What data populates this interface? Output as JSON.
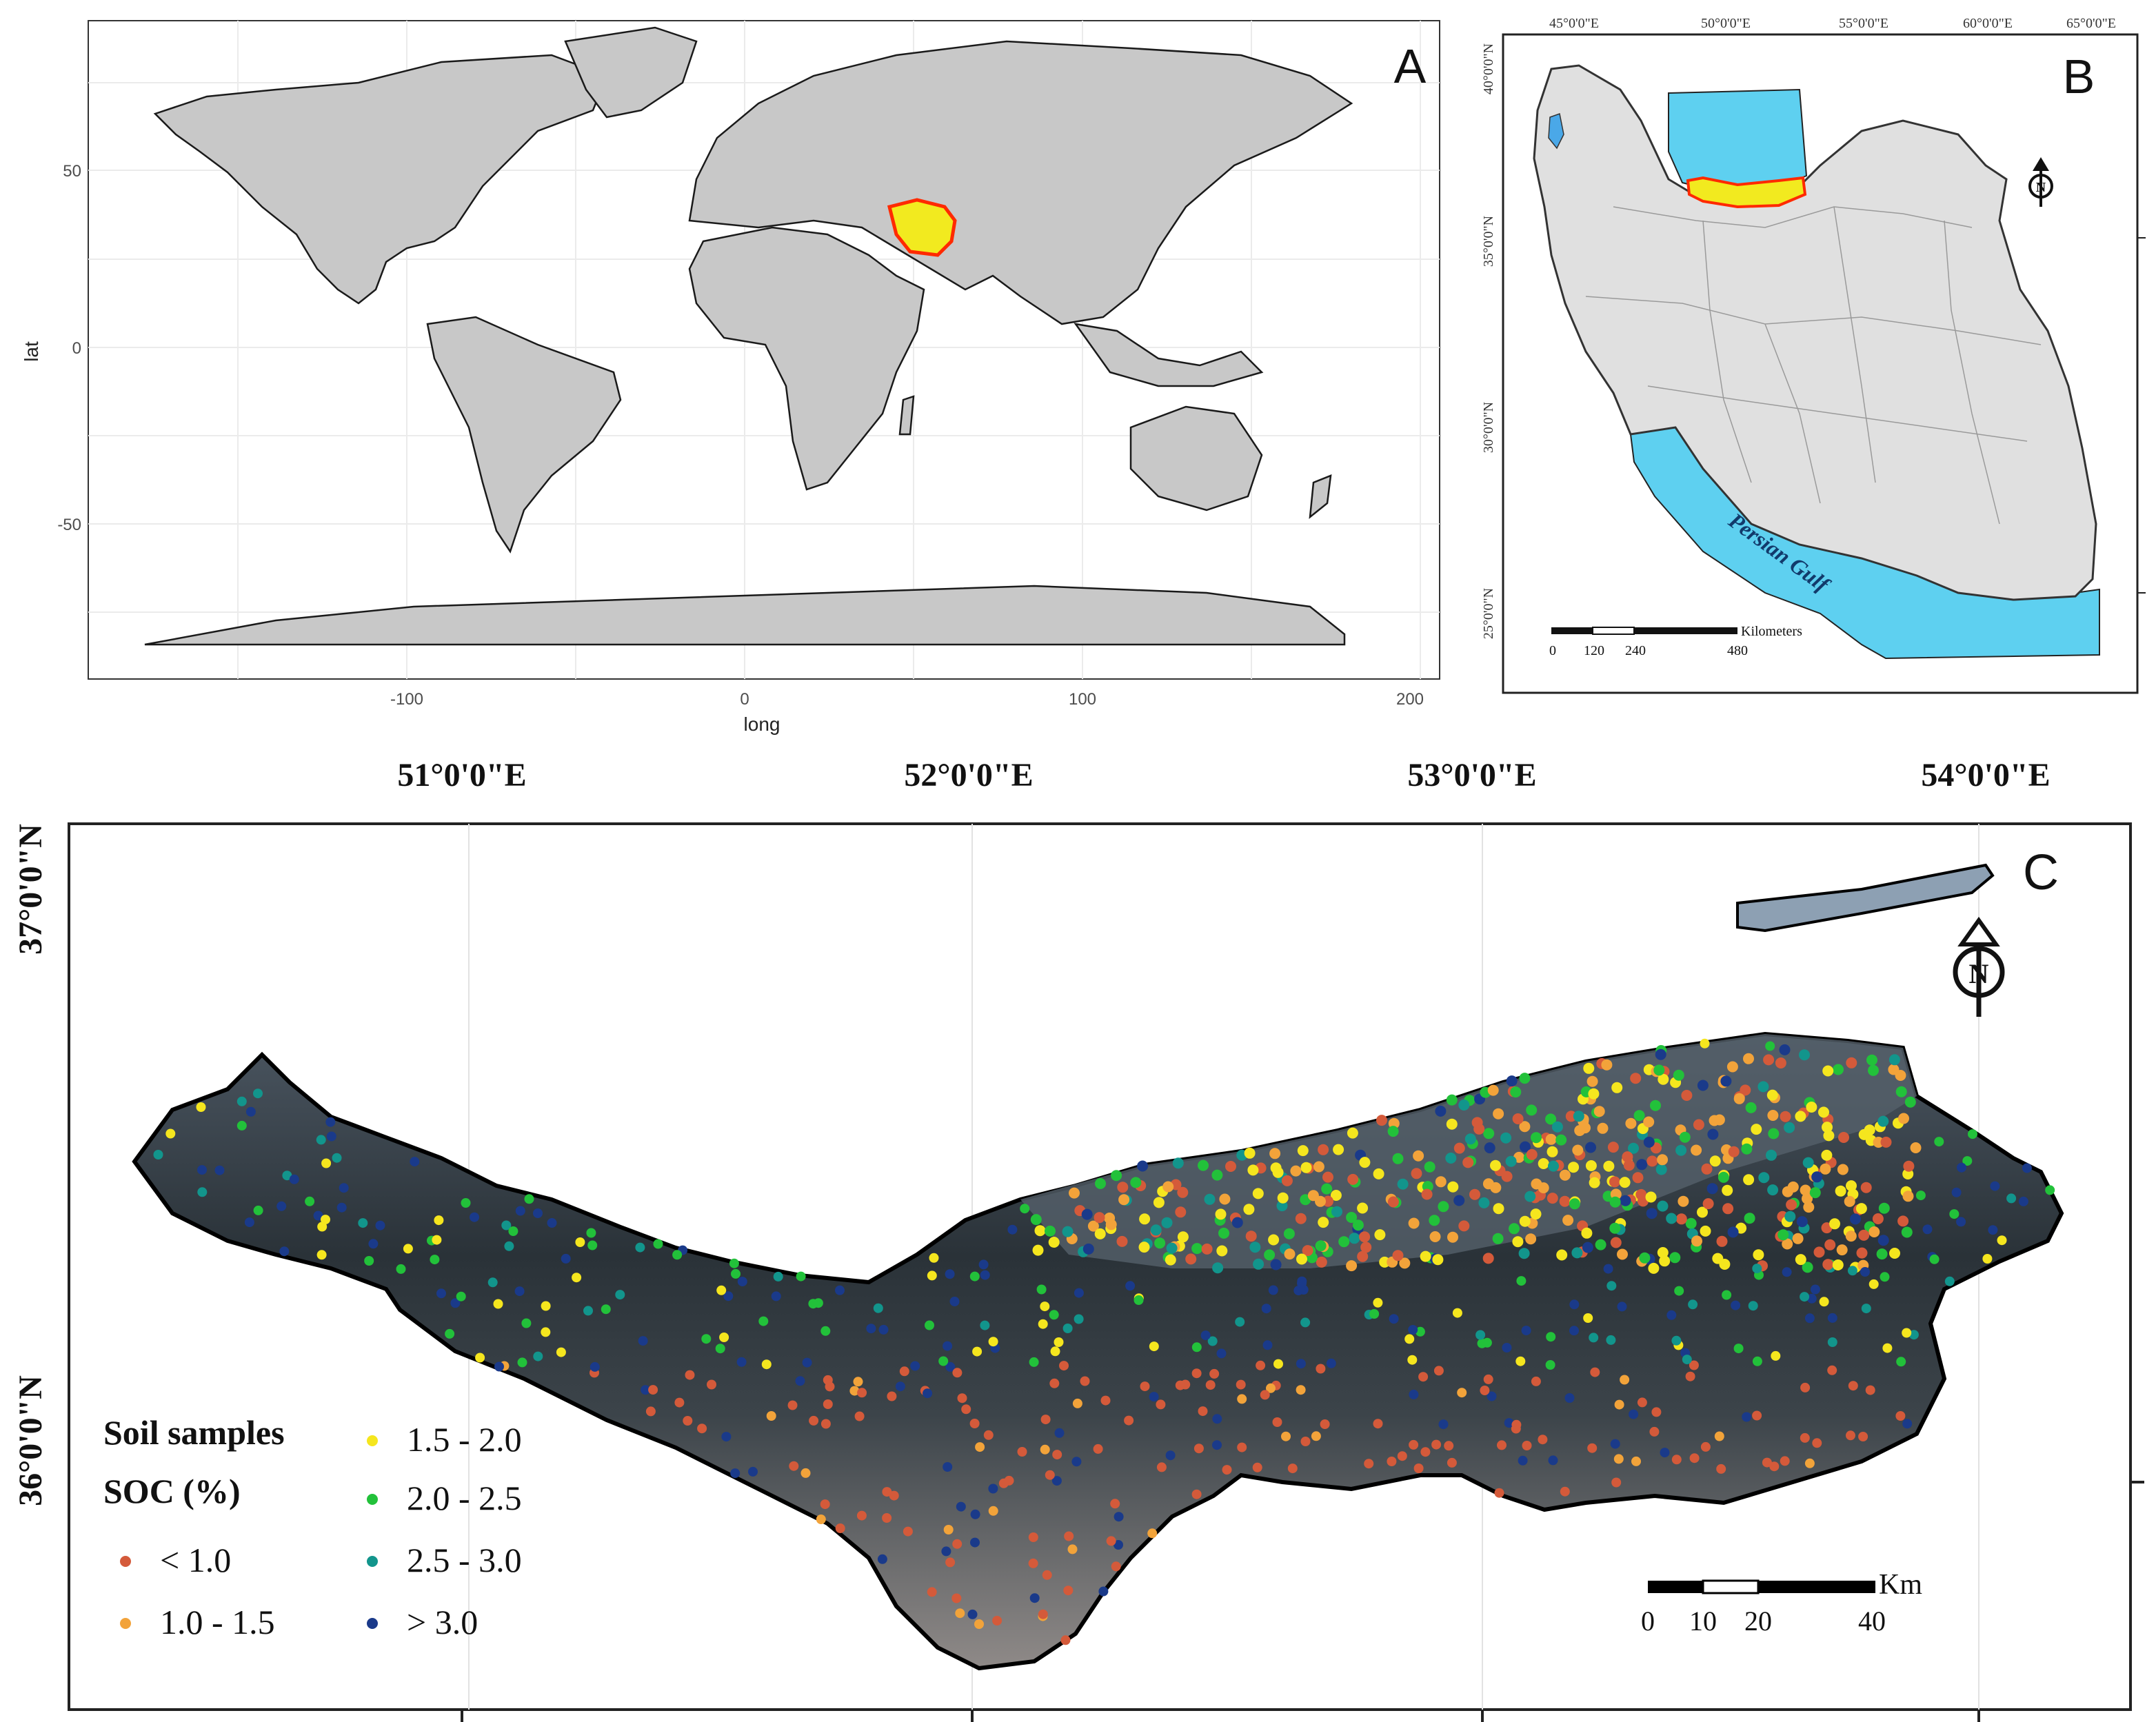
{
  "panel_a": {
    "letter": "A",
    "x_axis_label": "long",
    "y_axis_label": "lat",
    "x_ticks": [
      "-100",
      "0",
      "100",
      "200"
    ],
    "y_ticks": [
      "50",
      "0",
      "-50"
    ],
    "highlight_country": "Iran",
    "colors": {
      "land": "#c8c8c8",
      "highlight": "#f2ea1f",
      "highlight_border": "#ff2a00",
      "grid": "#ebebeb"
    }
  },
  "panel_b": {
    "letter": "B",
    "top_ticks": [
      "45°0'0\"E",
      "50°0'0\"E",
      "55°0'0\"E",
      "60°0'0\"E",
      "65°0'0\"E"
    ],
    "left_ticks": [
      "40°0'0\"N",
      "35°0'0\"N",
      "30°0'0\"N",
      "25°0'0\"N"
    ],
    "water_label": "Persian Gulf",
    "scale_label": "Kilometers",
    "scale_ticks": [
      "0",
      "120",
      "240",
      "480"
    ],
    "north_symbol": "N",
    "colors": {
      "land": "#e0e0e0",
      "water": "#5ed0f0",
      "province": "#f2ea1f",
      "province_border": "#ff2a00"
    }
  },
  "panel_c": {
    "letter": "C",
    "top_ticks": [
      "51°0'0\"E",
      "52°0'0\"E",
      "53°0'0\"E",
      "54°0'0\"E"
    ],
    "left_ticks": [
      "37°0'0\"N",
      "36°0'0\"N"
    ],
    "north_symbol": "N",
    "scale_unit": "Km",
    "scale_ticks": [
      "0",
      "10",
      "20",
      "40"
    ],
    "legend": {
      "title": "Soil samples",
      "subtitle": "SOC (%)",
      "classes": [
        {
          "label": "< 1.0",
          "color": "#d45a3a"
        },
        {
          "label": "1.0 - 1.5",
          "color": "#f2a33a"
        },
        {
          "label": "1.5 - 2.0",
          "color": "#f5e61e"
        },
        {
          "label": "2.0 - 2.5",
          "color": "#22c13a"
        },
        {
          "label": "2.5 - 3.0",
          "color": "#12958c"
        },
        {
          "label": "> 3.0",
          "color": "#1a3a8a"
        }
      ]
    }
  }
}
